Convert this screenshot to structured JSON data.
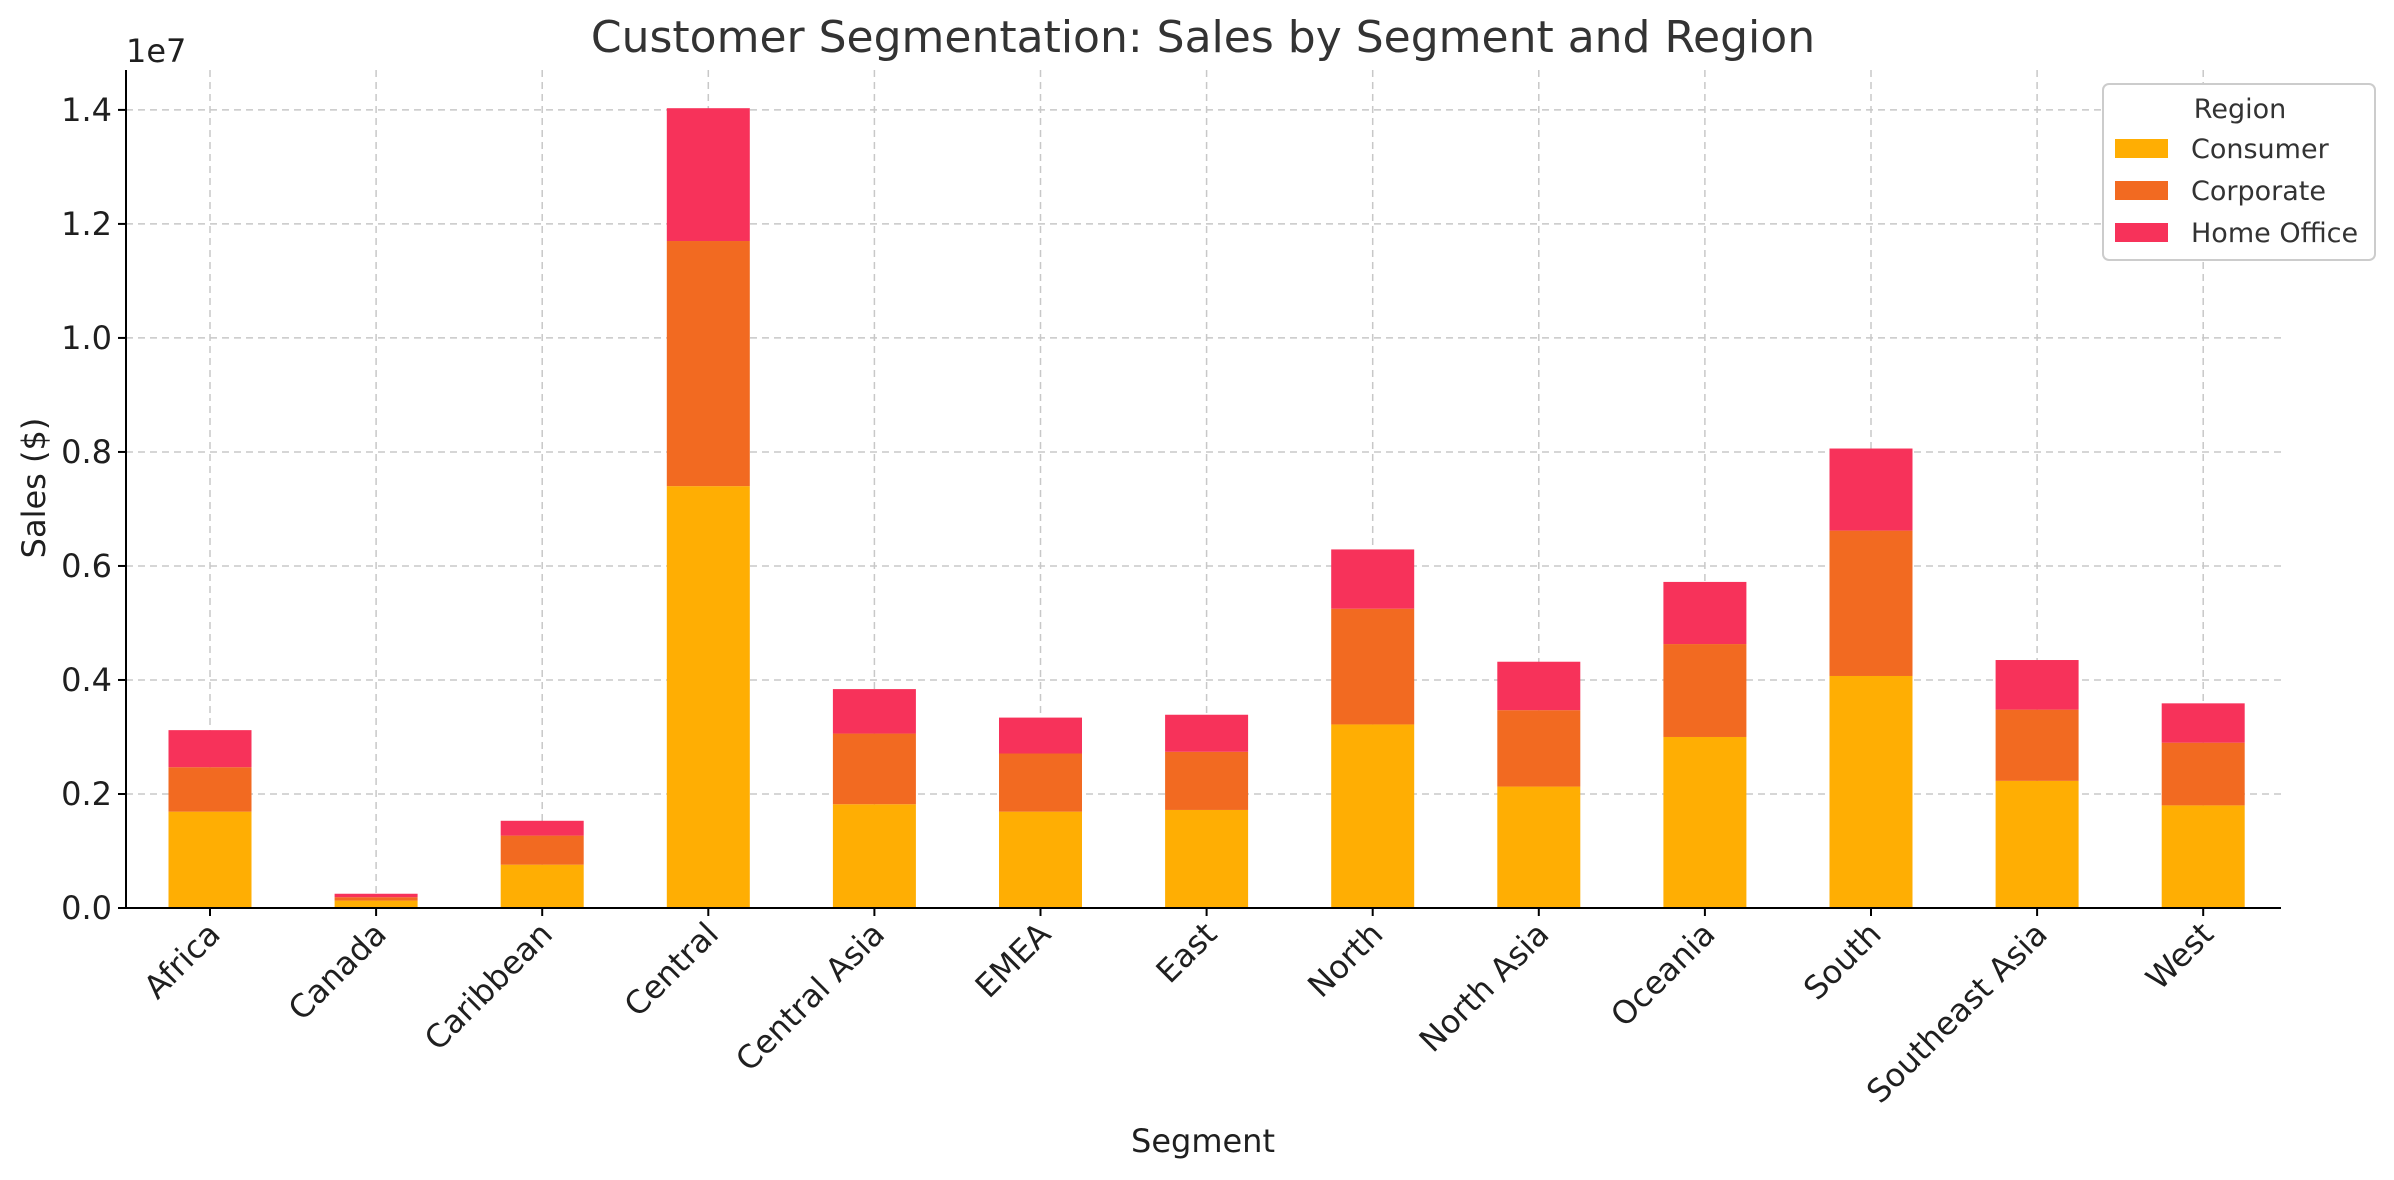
{
  "chart_data": {
    "type": "bar",
    "stacked": true,
    "title": "Customer Segmentation: Sales by Segment and Region",
    "xlabel": "Segment",
    "ylabel": "Sales ($)",
    "y_offset_label": "1e7",
    "ylim": [
      0,
      14700000
    ],
    "yticks": [
      0,
      2000000,
      4000000,
      6000000,
      8000000,
      10000000,
      12000000,
      14000000
    ],
    "ytick_labels": [
      "0.0",
      "0.2",
      "0.4",
      "0.6",
      "0.8",
      "1.0",
      "1.2",
      "1.4"
    ],
    "grid": true,
    "legend": {
      "title": "Region",
      "placement": "top-right"
    },
    "categories": [
      "Africa",
      "Canada",
      "Caribbean",
      "Central",
      "Central Asia",
      "EMEA",
      "East",
      "North",
      "North Asia",
      "Oceania",
      "South",
      "Southeast Asia",
      "West"
    ],
    "series": [
      {
        "name": "Consumer",
        "color": "#FFAE03",
        "values": [
          1690000,
          130000,
          760000,
          7400000,
          1820000,
          1690000,
          1720000,
          3220000,
          2130000,
          3000000,
          4070000,
          2230000,
          1800000
        ]
      },
      {
        "name": "Corporate",
        "color": "#F26A21",
        "values": [
          780000,
          60000,
          510000,
          4300000,
          1240000,
          1020000,
          1020000,
          2030000,
          1340000,
          1630000,
          2550000,
          1250000,
          1100000
        ]
      },
      {
        "name": "Home Office",
        "color": "#F7325A",
        "values": [
          650000,
          60000,
          260000,
          2330000,
          780000,
          630000,
          650000,
          1040000,
          850000,
          1090000,
          1440000,
          870000,
          690000
        ]
      }
    ]
  }
}
